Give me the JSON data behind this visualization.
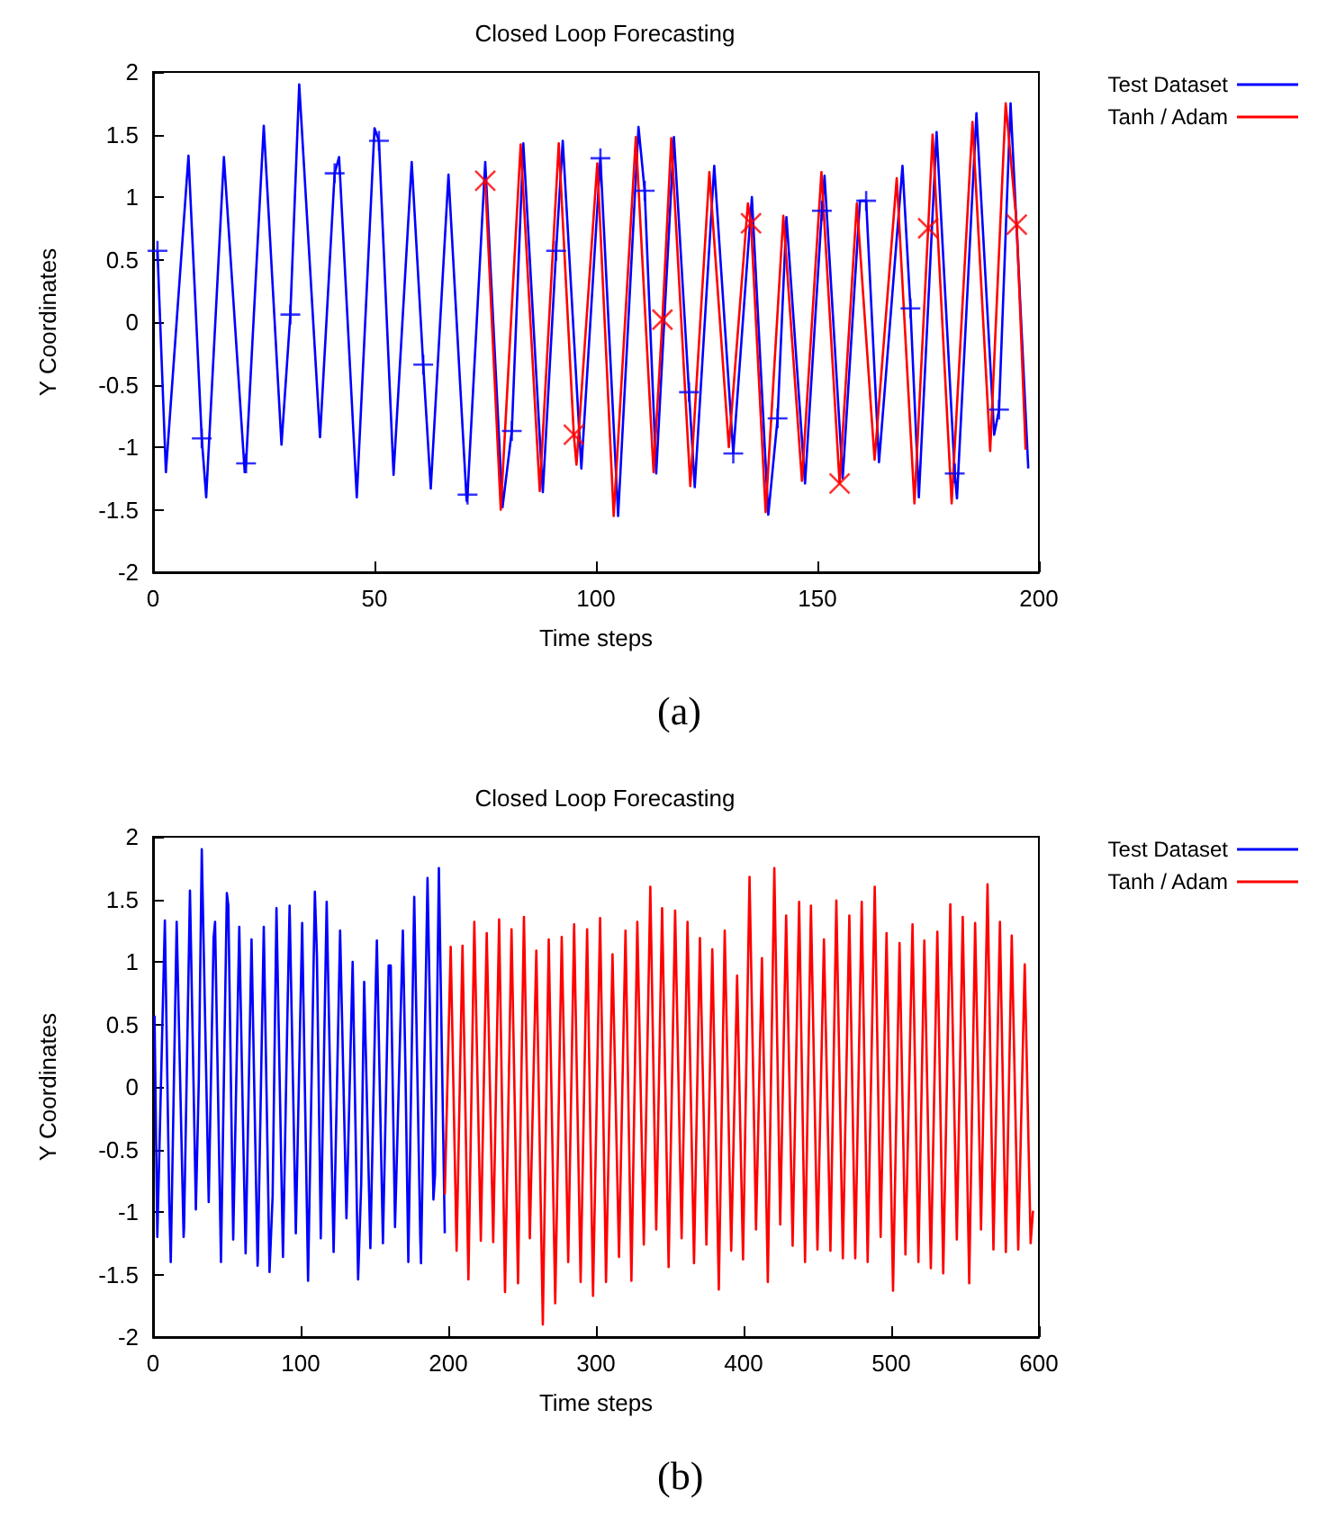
{
  "chart_data": [
    {
      "type": "line",
      "title": "Closed Loop Forecasting",
      "xlabel": "Time steps",
      "ylabel": "Y Coordinates",
      "annotations": [
        "(a)"
      ],
      "xlim": [
        0,
        200
      ],
      "xticks": [
        0,
        50,
        100,
        150,
        200
      ],
      "ylim": [
        -2,
        2
      ],
      "yticks": [
        -2,
        -1.5,
        -1,
        -0.5,
        0,
        0.5,
        1,
        1.5,
        2
      ],
      "grid": false,
      "legend": "top right",
      "series": [
        {
          "type": "line",
          "name": "Test Dataset",
          "color": "#0000ff",
          "x": [
            1,
            2.9,
            8,
            11,
            12,
            16,
            20.7,
            21,
            25,
            29,
            31,
            33,
            37.7,
            41,
            42,
            46,
            50,
            51,
            54.3,
            58.4,
            61,
            62.7,
            66.7,
            70.8,
            71,
            75,
            78.9,
            81,
            83.6,
            88,
            91,
            92.5,
            96.7,
            101,
            105,
            109.6,
            111,
            113.6,
            117.6,
            121,
            122.3,
            126.7,
            131,
            135.2,
            138.9,
            141,
            143,
            147.2,
            151,
            151.6,
            155.7,
            159.6,
            161,
            163.9,
            169.2,
            171,
            172.9,
            176.9,
            181,
            181.5,
            185.9,
            189.9,
            191,
            193.6,
            197.6
          ],
          "values": [
            0.57,
            -1.2,
            1.33,
            -0.93,
            -1.4,
            1.32,
            -1.2,
            -1.13,
            1.57,
            -0.98,
            0.06,
            1.9,
            -0.92,
            1.19,
            1.32,
            -1.4,
            1.55,
            1.45,
            -1.22,
            1.28,
            -0.34,
            -1.33,
            1.18,
            -1.43,
            -1.38,
            1.28,
            -1.48,
            -0.87,
            1.43,
            -1.36,
            0.57,
            1.45,
            -1.17,
            1.31,
            -1.55,
            1.56,
            1.05,
            -1.21,
            1.48,
            -0.56,
            -1.32,
            1.25,
            -1.05,
            1.0,
            -1.54,
            -0.77,
            0.84,
            -1.29,
            0.89,
            1.17,
            -1.25,
            0.97,
            0.97,
            -1.12,
            1.25,
            0.11,
            -1.4,
            1.52,
            -1.21,
            -1.41,
            1.67,
            -0.9,
            -0.7,
            1.75,
            -1.17
          ]
        },
        {
          "type": "line",
          "name": "Tanh / Adam",
          "color": "#ff0000",
          "x": [
            75,
            78.5,
            83,
            87.3,
            91.6,
            95,
            95.6,
            100.3,
            104,
            109,
            113,
            115,
            117,
            121.3,
            125.6,
            130,
            134.3,
            135,
            138.3,
            142.3,
            146.5,
            150.9,
            155,
            158.9,
            162.9,
            167.9,
            171.9,
            175,
            176,
            180.3,
            185,
            189,
            192.5,
            195,
            197
          ],
          "values": [
            1.13,
            -1.5,
            1.42,
            -1.35,
            1.43,
            -0.9,
            -1.14,
            1.27,
            -1.55,
            1.48,
            -1.2,
            0.02,
            1.47,
            -1.31,
            1.2,
            -1.0,
            0.95,
            0.79,
            -1.52,
            0.85,
            -1.27,
            1.2,
            -1.29,
            0.95,
            -1.1,
            1.15,
            -1.45,
            0.75,
            1.5,
            -1.45,
            1.6,
            -1.03,
            1.75,
            0.78,
            -1.02
          ]
        },
        {
          "type": "scatter",
          "marker": "plus",
          "color": "#0000ff",
          "x": [
            1,
            11,
            21,
            31,
            41,
            51,
            61,
            71,
            81,
            91,
            101,
            111,
            121,
            131,
            141,
            151,
            161,
            171,
            181,
            191
          ],
          "values": [
            0.57,
            -0.93,
            -1.13,
            0.06,
            1.19,
            1.45,
            -0.34,
            -1.38,
            -0.87,
            0.57,
            1.31,
            1.05,
            -0.56,
            -1.05,
            -0.77,
            0.89,
            0.97,
            0.11,
            -1.21,
            -0.7
          ]
        },
        {
          "type": "scatter",
          "marker": "cross",
          "color": "#ff0000",
          "x": [
            75,
            95,
            115,
            135,
            155,
            175,
            195
          ],
          "values": [
            1.13,
            -0.9,
            0.02,
            0.79,
            -1.29,
            0.75,
            0.78
          ]
        }
      ]
    },
    {
      "type": "line",
      "title": "Closed Loop Forecasting",
      "xlabel": "Time steps",
      "ylabel": "Y Coordinates",
      "annotations": [
        "(b)"
      ],
      "xlim": [
        0,
        600
      ],
      "xticks": [
        0,
        100,
        200,
        300,
        400,
        500,
        600
      ],
      "ylim": [
        -2,
        2
      ],
      "yticks": [
        -2,
        -1.5,
        -1,
        -0.5,
        0,
        0.5,
        1,
        1.5,
        2
      ],
      "grid": false,
      "legend": "top right",
      "series": [
        {
          "type": "line",
          "name": "Test Dataset",
          "color": "#0000ff",
          "x": [
            1,
            2.9,
            8,
            11,
            12,
            16,
            20.7,
            21,
            25,
            29,
            31,
            33,
            37.7,
            41,
            42,
            46,
            50,
            51,
            54.3,
            58.4,
            61,
            62.7,
            66.7,
            70.8,
            71,
            75,
            78.9,
            81,
            83.6,
            88,
            91,
            92.5,
            96.7,
            101,
            105,
            109.6,
            111,
            113.6,
            117.6,
            121,
            122.3,
            126.7,
            131,
            135.2,
            138.9,
            141,
            143,
            147.2,
            151,
            151.6,
            155.7,
            159.6,
            161,
            163.9,
            169.2,
            171,
            172.9,
            176.9,
            181,
            181.5,
            185.9,
            189.9,
            191,
            193.6,
            197.6
          ],
          "values": [
            0.57,
            -1.2,
            1.33,
            -0.93,
            -1.4,
            1.32,
            -1.2,
            -1.13,
            1.57,
            -0.98,
            0.06,
            1.9,
            -0.92,
            1.19,
            1.32,
            -1.4,
            1.55,
            1.45,
            -1.22,
            1.28,
            -0.34,
            -1.33,
            1.18,
            -1.43,
            -1.38,
            1.28,
            -1.48,
            -0.87,
            1.43,
            -1.36,
            0.57,
            1.45,
            -1.17,
            1.31,
            -1.55,
            1.56,
            1.05,
            -1.21,
            1.48,
            -0.56,
            -1.32,
            1.25,
            -1.05,
            1.0,
            -1.54,
            -0.77,
            0.84,
            -1.29,
            0.89,
            1.17,
            -1.25,
            0.97,
            0.97,
            -1.12,
            1.25,
            0.11,
            -1.4,
            1.52,
            -1.21,
            -1.41,
            1.67,
            -0.9,
            -0.7,
            1.75,
            -1.17
          ]
        },
        {
          "type": "line",
          "name": "Tanh / Adam",
          "color": "#ff0000",
          "x": [
            197.6,
            201.6,
            205.6,
            209.6,
            213.6,
            217.6,
            222,
            226,
            230.4,
            234.4,
            238.4,
            242.8,
            247.2,
            251.2,
            255.2,
            259.6,
            264,
            268,
            272.4,
            276.8,
            281.2,
            285.2,
            289.6,
            294,
            298,
            302.8,
            306.8,
            311.2,
            315.6,
            320,
            324,
            328,
            332.4,
            336.8,
            340.8,
            344.8,
            349.2,
            353.6,
            358,
            362,
            366.4,
            370.4,
            374.8,
            378.8,
            383.2,
            387.2,
            391.6,
            395.6,
            399.6,
            404,
            408.4,
            412.4,
            416.4,
            420.8,
            424.8,
            428.8,
            433.2,
            437.6,
            441.6,
            445.6,
            450,
            454.4,
            458.8,
            462.8,
            467.2,
            471.6,
            475.6,
            480,
            484,
            488.8,
            492.8,
            496.8,
            501.2,
            505.6,
            509.6,
            514.4,
            518.4,
            522.4,
            526.8,
            531.2,
            535.2,
            540,
            544.4,
            548.4,
            552.8,
            556.8,
            560.8,
            565.2,
            569.2,
            573.6,
            577.6,
            581.6,
            586,
            590.4,
            594.4,
            596
          ],
          "values": [
            -0.86,
            1.12,
            -1.31,
            1.13,
            -1.54,
            1.32,
            -1.23,
            1.23,
            -1.24,
            1.34,
            -1.64,
            1.26,
            -1.57,
            1.36,
            -1.21,
            1.09,
            -1.9,
            1.18,
            -1.73,
            1.2,
            -1.4,
            1.3,
            -1.56,
            1.26,
            -1.67,
            1.35,
            -1.56,
            1.06,
            -1.36,
            1.25,
            -1.55,
            1.32,
            -1.26,
            1.6,
            -1.14,
            1.43,
            -1.44,
            1.41,
            -1.21,
            1.32,
            -1.41,
            1.19,
            -1.26,
            1.1,
            -1.62,
            1.25,
            -1.31,
            0.89,
            -1.38,
            1.68,
            -1.14,
            1.03,
            -1.56,
            1.75,
            -1.1,
            1.37,
            -1.27,
            1.48,
            -1.4,
            1.45,
            -1.3,
            1.18,
            -1.31,
            1.49,
            -1.37,
            1.37,
            -1.37,
            1.48,
            -1.4,
            1.6,
            -1.2,
            1.23,
            -1.63,
            1.15,
            -1.34,
            1.3,
            -1.4,
            1.17,
            -1.45,
            1.24,
            -1.49,
            1.46,
            -1.22,
            1.36,
            -1.57,
            1.31,
            -1.14,
            1.62,
            -1.3,
            1.32,
            -1.32,
            1.21,
            -1.3,
            0.98,
            -1.25,
            -0.99
          ]
        }
      ]
    }
  ]
}
